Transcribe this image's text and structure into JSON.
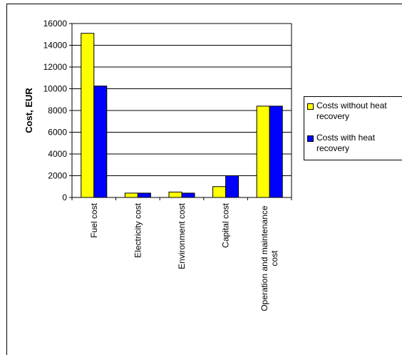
{
  "chart_data": {
    "type": "bar",
    "title": "",
    "xlabel": "",
    "ylabel": "Cost, EUR",
    "ylim": [
      0,
      16000
    ],
    "yticks": [
      0,
      2000,
      4000,
      6000,
      8000,
      10000,
      12000,
      14000,
      16000
    ],
    "grid": true,
    "legend_position": "right",
    "categories": [
      "Fuel cost",
      "Electricity cost",
      "Environment cost",
      "Capital cost",
      "Operation and maintenance cost"
    ],
    "series": [
      {
        "name": "Costs without heat recovery",
        "color": "#ffff00",
        "values": [
          15100,
          400,
          500,
          1000,
          8400
        ]
      },
      {
        "name": "Costs with heat recovery",
        "color": "#0000ff",
        "values": [
          10250,
          400,
          400,
          2000,
          8400
        ]
      }
    ]
  }
}
